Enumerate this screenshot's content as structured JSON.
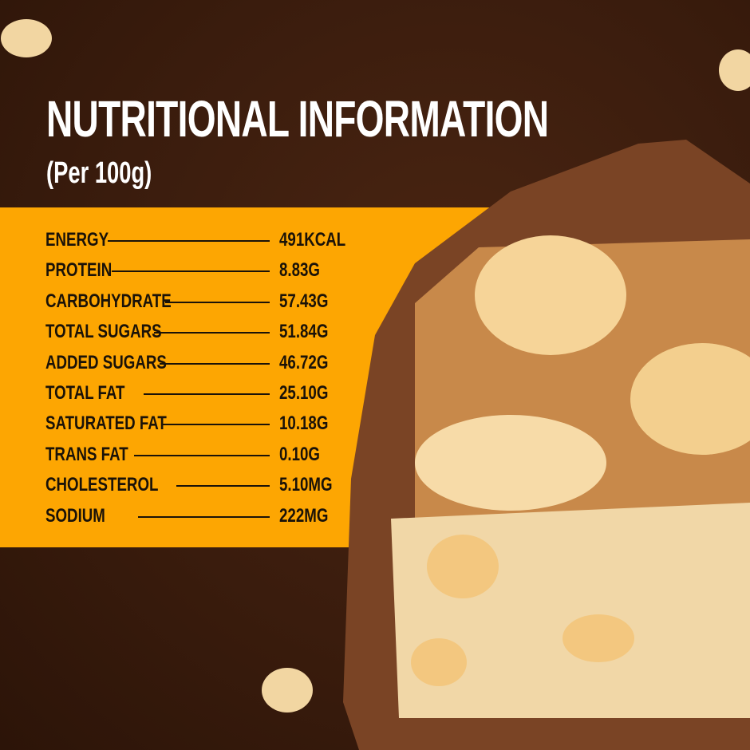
{
  "title": "NUTRITIONAL INFORMATION",
  "subtitle": "(Per 100g)",
  "colors": {
    "background": "#3a1c0d",
    "band": "#fda602",
    "text": "#1a1208",
    "title": "#ffffff"
  },
  "nutrients": [
    {
      "label": "ENERGY",
      "value": "491KCAL"
    },
    {
      "label": "PROTEIN",
      "value": "8.83G"
    },
    {
      "label": "CARBOHYDRATE",
      "value": "57.43G"
    },
    {
      "label": "TOTAL SUGARS",
      "value": "51.84G"
    },
    {
      "label": "ADDED SUGARS",
      "value": "46.72G"
    },
    {
      "label": "TOTAL FAT",
      "value": "25.10G"
    },
    {
      "label": "SATURATED FAT",
      "value": "10.18G"
    },
    {
      "label": "TRANS FAT",
      "value": "0.10G"
    },
    {
      "label": "CHOLESTEROL",
      "value": "5.10MG"
    },
    {
      "label": "SODIUM",
      "value": "222MG"
    }
  ]
}
